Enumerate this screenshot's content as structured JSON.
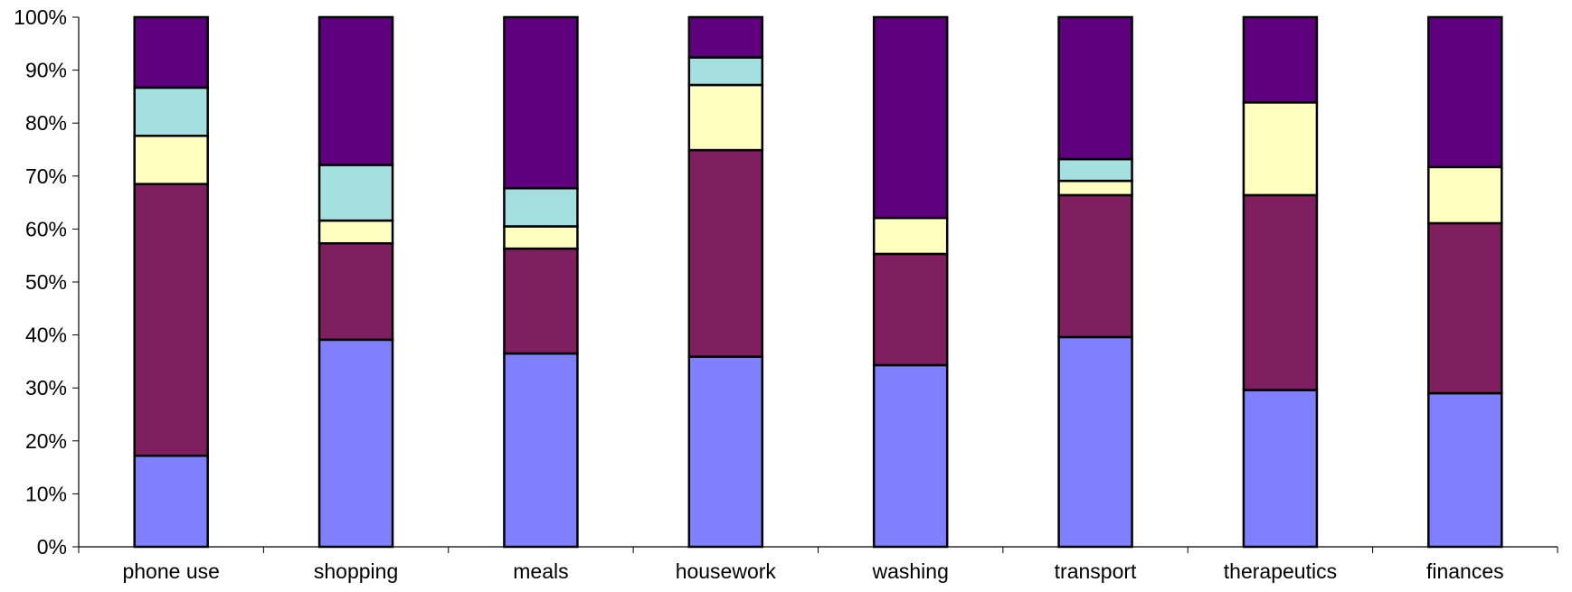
{
  "chart_data": {
    "type": "bar",
    "stacked": true,
    "percent_stacked": true,
    "categories": [
      "phone use",
      "shopping",
      "meals",
      "housework",
      "washing",
      "transport",
      "therapeutics",
      "finances"
    ],
    "y_ticks": [
      "0%",
      "10%",
      "20%",
      "30%",
      "40%",
      "50%",
      "60%",
      "70%",
      "80%",
      "90%",
      "100%"
    ],
    "ylim": [
      0,
      100
    ],
    "legend": "none",
    "grid": false,
    "series": [
      {
        "color": "#8080ff",
        "values": [
          17.2,
          39.1,
          36.5,
          35.9,
          34.3,
          39.6,
          29.6,
          29.0
        ]
      },
      {
        "color": "#7f1f5f",
        "values": [
          51.3,
          18.2,
          19.8,
          39.0,
          21.0,
          26.8,
          36.8,
          32.1
        ]
      },
      {
        "color": "#ffffc0",
        "values": [
          9.1,
          4.3,
          4.2,
          12.3,
          6.8,
          2.7,
          17.5,
          10.6
        ]
      },
      {
        "color": "#a4e0e0",
        "values": [
          9.1,
          10.5,
          7.2,
          5.2,
          0,
          4.1,
          0,
          0
        ]
      },
      {
        "color": "#5f007f",
        "values": [
          13.3,
          27.9,
          32.3,
          7.6,
          37.9,
          26.8,
          16.1,
          28.3
        ]
      }
    ]
  }
}
